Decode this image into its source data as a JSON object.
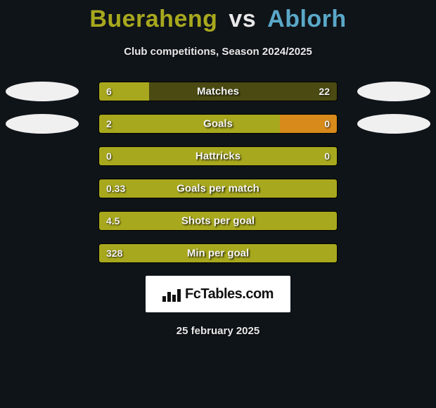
{
  "title": {
    "left_name": "Bueraheng",
    "vs": "vs",
    "right_name": "Ablorh",
    "left_color": "#a8a81e",
    "vs_color": "#e8e8e8",
    "right_color": "#5aa8c8",
    "fontsize": 34
  },
  "subtitle": "Club competitions, Season 2024/2025",
  "chart": {
    "track_bg": "#3a3a10",
    "left_bar_color": "#a8a81e",
    "right_bar_color": "#4a4a12",
    "swatches": {
      "left_row_index": 0,
      "right_row_index": 1,
      "left_color": "#f0f0f0",
      "right_color": "#f0f0f0"
    },
    "rows": [
      {
        "label": "Matches",
        "left_val": "6",
        "right_val": "22",
        "left_pct": 21,
        "right_pct": 79
      },
      {
        "label": "Goals",
        "left_val": "2",
        "right_val": "0",
        "left_pct": 76,
        "right_pct": 24,
        "right_bar_color_override": "#d88a1a"
      },
      {
        "label": "Hattricks",
        "left_val": "0",
        "right_val": "0",
        "left_pct": 100,
        "right_pct": 0
      },
      {
        "label": "Goals per match",
        "left_val": "0.33",
        "right_val": "",
        "left_pct": 100,
        "right_pct": 0
      },
      {
        "label": "Shots per goal",
        "left_val": "4.5",
        "right_val": "",
        "left_pct": 100,
        "right_pct": 0
      },
      {
        "label": "Min per goal",
        "left_val": "328",
        "right_val": "",
        "left_pct": 100,
        "right_pct": 0
      }
    ]
  },
  "brand": {
    "text": "FcTables.com",
    "icon_bars": [
      8,
      14,
      10,
      18
    ],
    "bg": "#ffffff",
    "fg": "#111111"
  },
  "date": "25 february 2025",
  "background_color": "#0f1419"
}
